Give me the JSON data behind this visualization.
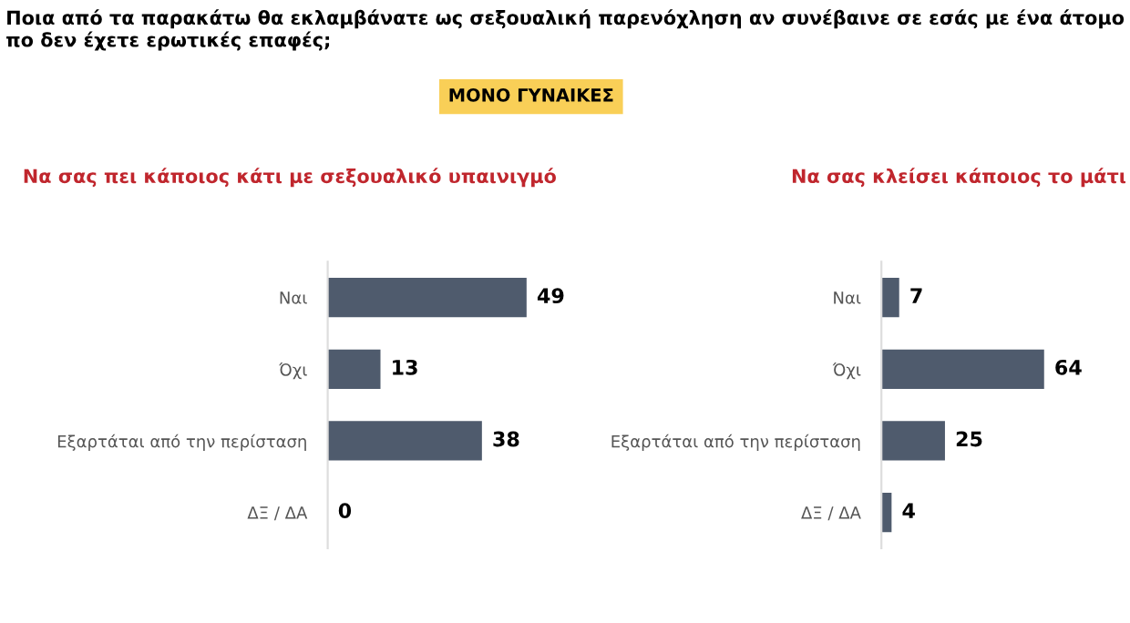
{
  "chart_data": [
    {
      "type": "bar",
      "orientation": "horizontal",
      "title": "Να σας πει κάποιος κάτι με σεξουαλικό υπαινιγμό",
      "annotations": [
        "Ποια από τα παρακάτω θα εκλαμβάνατε ως σεξουαλική παρενόχληση αν συνέβαινε σε εσάς με ένα άτομο πο δεν έχετε ερωτικές επαφές;",
        "ΜΟΝΟ ΓΥΝΑΙΚΕΣ"
      ],
      "categories": [
        "Ναι",
        "Όχι",
        "Εξαρτάται από την περίσταση",
        "ΔΞ / ΔΑ"
      ],
      "values": [
        49,
        13,
        38,
        0
      ],
      "color": "#4f5b6d",
      "data_labels": true,
      "tick_labels": "y"
    },
    {
      "type": "bar",
      "orientation": "horizontal",
      "title": "Να σας κλείσει κάποιος το μάτι",
      "categories": [
        "Ναι",
        "Όχι",
        "Εξαρτάται από την περίσταση",
        "ΔΞ / ΔΑ"
      ],
      "values": [
        7,
        64,
        25,
        4
      ],
      "color": "#4f5b6d",
      "data_labels": true,
      "tick_labels": "y"
    }
  ]
}
